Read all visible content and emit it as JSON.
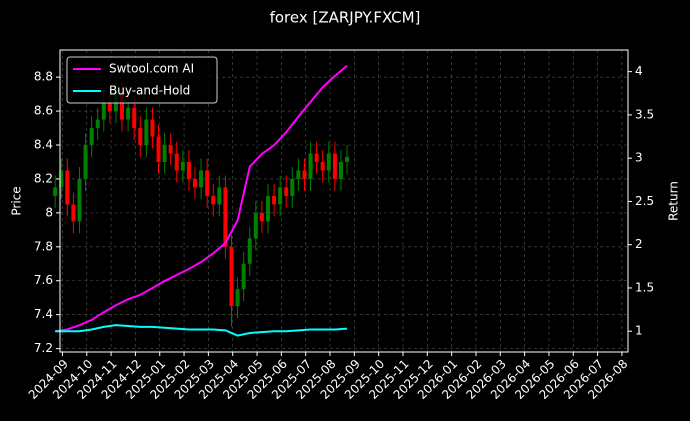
{
  "chart_data": {
    "type": "candlestick",
    "title": "forex [ZARJPY.FXCM]",
    "ylabel": "Price",
    "y2label": "Return",
    "xlim": [
      -0.1,
      23.25
    ],
    "xticks": [
      {
        "value": 0,
        "label": "2024-09"
      },
      {
        "value": 1,
        "label": "2024-10"
      },
      {
        "value": 2,
        "label": "2024-11"
      },
      {
        "value": 3,
        "label": "2024-12"
      },
      {
        "value": 4,
        "label": "2025-01"
      },
      {
        "value": 5,
        "label": "2025-02"
      },
      {
        "value": 6,
        "label": "2025-03"
      },
      {
        "value": 7,
        "label": "2025-04"
      },
      {
        "value": 8,
        "label": "2025-05"
      },
      {
        "value": 9,
        "label": "2025-06"
      },
      {
        "value": 10,
        "label": "2025-07"
      },
      {
        "value": 11,
        "label": "2025-08"
      },
      {
        "value": 12,
        "label": "2025-09"
      },
      {
        "value": 13,
        "label": "2025-10"
      },
      {
        "value": 14,
        "label": "2025-11"
      },
      {
        "value": 15,
        "label": "2025-12"
      },
      {
        "value": 16,
        "label": "2026-01"
      },
      {
        "value": 17,
        "label": "2026-02"
      },
      {
        "value": 18,
        "label": "2026-03"
      },
      {
        "value": 19,
        "label": "2026-04"
      },
      {
        "value": 20,
        "label": "2026-05"
      },
      {
        "value": 21,
        "label": "2026-06"
      },
      {
        "value": 22,
        "label": "2026-07"
      },
      {
        "value": 23,
        "label": "2026-08"
      }
    ],
    "ylim": [
      7.18,
      8.96
    ],
    "yticks": [
      7.2,
      7.4,
      7.6,
      7.8,
      8.0,
      8.2,
      8.4,
      8.6,
      8.8
    ],
    "y2lim": [
      0.76,
      4.25
    ],
    "y2ticks": [
      1.0,
      1.5,
      2.0,
      2.5,
      3.0,
      3.5,
      4.0
    ],
    "grid": true,
    "legend": "upper left",
    "candles": {
      "up_color": "#008000",
      "down_color": "#ff0000",
      "x": [
        -0.3,
        -0.05,
        0.2,
        0.45,
        0.7,
        0.95,
        1.2,
        1.45,
        1.7,
        1.95,
        2.2,
        2.45,
        2.7,
        2.95,
        3.2,
        3.45,
        3.7,
        3.95,
        4.2,
        4.45,
        4.7,
        4.95,
        5.2,
        5.45,
        5.7,
        5.95,
        6.2,
        6.45,
        6.7,
        6.95,
        7.2,
        7.45,
        7.7,
        7.95,
        8.2,
        8.45,
        8.7,
        8.95,
        9.2,
        9.45,
        9.7,
        9.95,
        10.2,
        10.45,
        10.7,
        10.95,
        11.2,
        11.45,
        11.7
      ],
      "open": [
        8.1,
        8.15,
        8.25,
        8.05,
        7.95,
        8.2,
        8.4,
        8.5,
        8.55,
        8.65,
        8.6,
        8.7,
        8.55,
        8.62,
        8.5,
        8.4,
        8.55,
        8.45,
        8.3,
        8.4,
        8.35,
        8.25,
        8.3,
        8.2,
        8.15,
        8.25,
        8.1,
        8.05,
        8.15,
        7.8,
        7.45,
        7.55,
        7.7,
        7.85,
        8.0,
        7.95,
        8.1,
        8.05,
        8.15,
        8.1,
        8.2,
        8.25,
        8.2,
        8.35,
        8.3,
        8.25,
        8.35,
        8.2,
        8.3
      ],
      "high": [
        8.22,
        8.32,
        8.32,
        8.12,
        8.27,
        8.47,
        8.57,
        8.62,
        8.72,
        8.72,
        8.77,
        8.77,
        8.69,
        8.69,
        8.57,
        8.62,
        8.62,
        8.52,
        8.47,
        8.47,
        8.42,
        8.37,
        8.37,
        8.27,
        8.32,
        8.32,
        8.17,
        8.22,
        8.22,
        7.87,
        7.62,
        7.77,
        7.92,
        8.07,
        8.07,
        8.17,
        8.17,
        8.22,
        8.22,
        8.27,
        8.32,
        8.32,
        8.42,
        8.42,
        8.37,
        8.42,
        8.42,
        8.37,
        8.4
      ],
      "low": [
        8.03,
        8.08,
        7.98,
        7.88,
        7.88,
        8.13,
        8.33,
        8.43,
        8.48,
        8.53,
        8.53,
        8.48,
        8.48,
        8.43,
        8.33,
        8.33,
        8.38,
        8.23,
        8.23,
        8.28,
        8.18,
        8.18,
        8.13,
        8.08,
        8.08,
        8.03,
        7.98,
        7.98,
        7.73,
        7.33,
        7.38,
        7.48,
        7.63,
        7.78,
        7.88,
        7.88,
        7.98,
        7.98,
        8.03,
        8.03,
        8.13,
        8.13,
        8.13,
        8.23,
        8.18,
        8.18,
        8.13,
        8.13,
        8.23
      ],
      "close": [
        8.15,
        8.25,
        8.05,
        7.95,
        8.2,
        8.4,
        8.5,
        8.55,
        8.65,
        8.6,
        8.7,
        8.55,
        8.62,
        8.5,
        8.4,
        8.55,
        8.45,
        8.3,
        8.4,
        8.35,
        8.25,
        8.3,
        8.2,
        8.15,
        8.25,
        8.1,
        8.05,
        8.15,
        7.8,
        7.45,
        7.55,
        7.7,
        7.85,
        8.0,
        7.95,
        8.1,
        8.05,
        8.15,
        8.1,
        8.2,
        8.25,
        8.2,
        8.35,
        8.3,
        8.25,
        8.35,
        8.2,
        8.3,
        8.33
      ]
    },
    "x": [
      -0.3,
      0.2,
      0.7,
      1.2,
      1.7,
      2.2,
      2.7,
      3.2,
      3.7,
      4.2,
      4.7,
      5.2,
      5.7,
      6.2,
      6.7,
      7.2,
      7.7,
      8.2,
      8.7,
      9.2,
      9.7,
      10.2,
      10.7,
      11.2,
      11.7
    ],
    "series": [
      {
        "name": "Swtool.com AI",
        "color": "#ff00ff",
        "axis": "y2",
        "values": [
          1.0,
          1.02,
          1.07,
          1.13,
          1.22,
          1.3,
          1.37,
          1.42,
          1.5,
          1.58,
          1.65,
          1.72,
          1.8,
          1.9,
          2.02,
          2.28,
          2.9,
          3.05,
          3.15,
          3.3,
          3.48,
          3.65,
          3.82,
          3.95,
          4.07
        ]
      },
      {
        "name": "Buy-and-Hold",
        "color": "#00ffff",
        "axis": "y2",
        "values": [
          1.0,
          1.0,
          1.0,
          1.02,
          1.05,
          1.07,
          1.06,
          1.05,
          1.05,
          1.04,
          1.03,
          1.02,
          1.02,
          1.02,
          1.01,
          0.95,
          0.98,
          0.99,
          1.0,
          1.0,
          1.01,
          1.02,
          1.02,
          1.02,
          1.03
        ]
      }
    ]
  }
}
